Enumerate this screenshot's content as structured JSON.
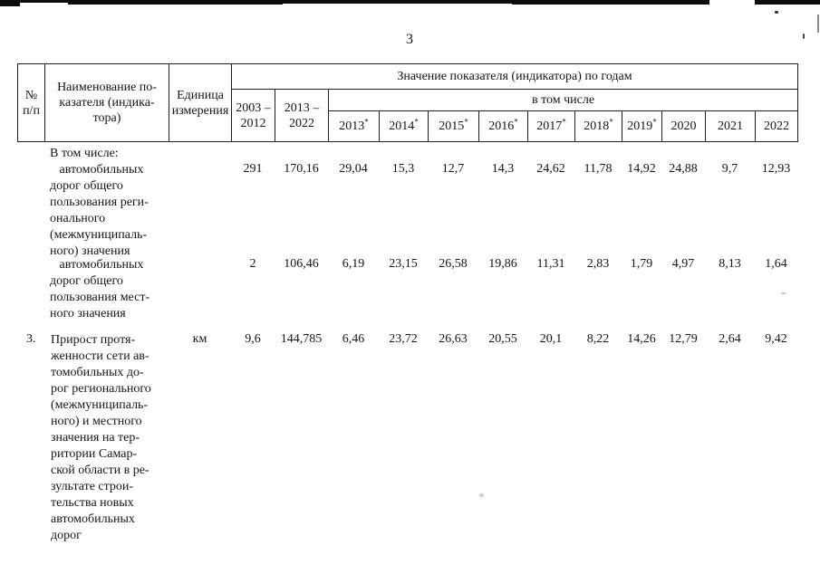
{
  "page": {
    "number": "3"
  },
  "table": {
    "header": {
      "num_lines": [
        "№",
        "п/п"
      ],
      "name_lines": [
        "Наименование по-",
        "казателя (индика-",
        "тора)"
      ],
      "unit_lines": [
        "Единица",
        "измерения"
      ],
      "values_group": "Значение показателя (индикатора) по годам",
      "period1_lines": [
        "2003 –",
        "2012"
      ],
      "period2_lines": [
        "2013 –",
        "2022"
      ],
      "including": "в том числе",
      "years": [
        {
          "label": "2013",
          "starred": true
        },
        {
          "label": "2014",
          "starred": true
        },
        {
          "label": "2015",
          "starred": true
        },
        {
          "label": "2016",
          "starred": true
        },
        {
          "label": "2017",
          "starred": true
        },
        {
          "label": "2018",
          "starred": true
        },
        {
          "label": "2019",
          "starred": true
        },
        {
          "label": "2020",
          "starred": false
        },
        {
          "label": "2021",
          "starred": false
        },
        {
          "label": "2022",
          "starred": false
        }
      ]
    },
    "body": [
      {
        "num": "",
        "unit": "",
        "name_lines": [
          "В том числе:",
          "   автомобильных",
          "дорог общего",
          "пользования реги-",
          "онального",
          "(межмуниципаль-",
          "ного) значения"
        ],
        "values": [
          "291",
          "170,16",
          "29,04",
          "15,3",
          "12,7",
          "14,3",
          "24,62",
          "11,78",
          "14,92",
          "24,88",
          "9,7",
          "12,93"
        ]
      },
      {
        "num": "",
        "unit": "",
        "name_lines": [
          "   автомобильных",
          "дорог общего",
          "пользования мест-",
          "ного значения"
        ],
        "values": [
          "2",
          "106,46",
          "6,19",
          "23,15",
          "26,58",
          "19,86",
          "11,31",
          "2,83",
          "1,79",
          "4,97",
          "8,13",
          "1,64"
        ]
      },
      {
        "num": "3.",
        "unit": "км",
        "name_lines": [
          "Прирост протя-",
          "женности сети ав-",
          "томобильных до-",
          "рог регионального",
          "(межмуниципаль-",
          "ного) и местного",
          "значения на тер-",
          "ритории Самар-",
          "ской области в ре-",
          "зультате строи-",
          "тельства новых",
          "автомобильных",
          "дорог"
        ],
        "values": [
          "9,6",
          "144,785",
          "6,46",
          "23,72",
          "26,63",
          "20,55",
          "20,1",
          "8,22",
          "14,26",
          "12,79",
          "2,64",
          "9,42"
        ]
      }
    ]
  },
  "colors": {
    "text": "#161616",
    "border": "#1d1d1d",
    "background": "#fefefe",
    "artifact": "#0c0c0c"
  }
}
